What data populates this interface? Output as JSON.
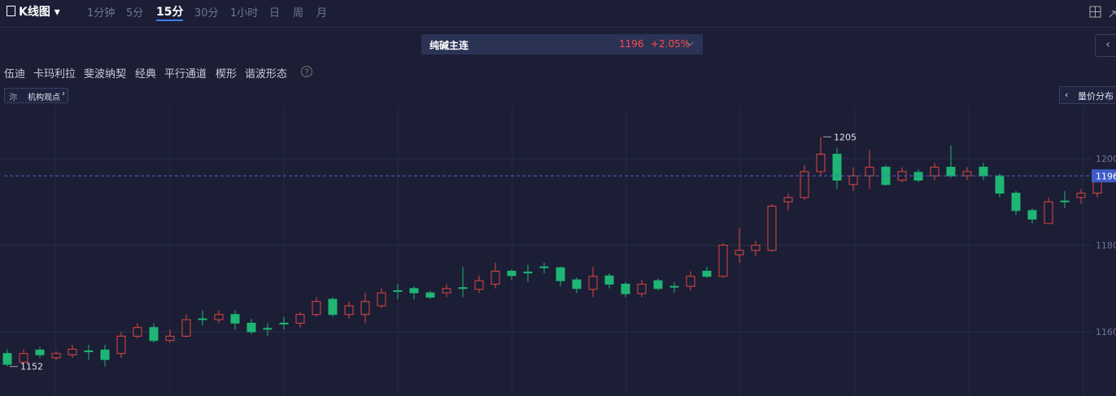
{
  "toolbar": {
    "chart_kind": "K线图",
    "timeframes": [
      "1分钟",
      "5分",
      "15分",
      "30分",
      "1小时",
      "日",
      "周",
      "月"
    ],
    "active": "15分"
  },
  "header": {
    "name": "纯碱主连",
    "price": "1196",
    "change": "+2.05%"
  },
  "tools": [
    "伍迪",
    "卡玛利拉",
    "斐波纳契",
    "经典",
    "平行通道",
    "楔形",
    "谐波形态"
  ],
  "buttons": {
    "views": "机构观点",
    "volume_profile": "量价分布"
  },
  "chart_data": {
    "type": "candlestick",
    "up_color": "#e0473f",
    "down_color": "#1fb574",
    "grid": true,
    "ylim": [
      1145,
      1212
    ],
    "yticks": [
      1160,
      1180,
      1200
    ],
    "high_label": 1205,
    "low_label": 1152,
    "last_price": 1196,
    "series": {
      "open": [
        1155,
        1153,
        1155.8,
        1154,
        1154.7,
        1155.6,
        1155.8,
        1155,
        1159,
        1161,
        1158,
        1159,
        1163,
        1162.8,
        1164,
        1162,
        1160.8,
        1162,
        1162,
        1164,
        1167.5,
        1164,
        1164,
        1166,
        1169.5,
        1170,
        1169,
        1169,
        1170.2,
        1169.8,
        1171,
        1174,
        1173.8,
        1175,
        1174.8,
        1172,
        1169.8,
        1172.9,
        1171,
        1168.8,
        1171.8,
        1170.5,
        1170.5,
        1174,
        1172.8,
        1177.8,
        1178.8,
        1178.8,
        1190,
        1191,
        1197,
        1201,
        1194,
        1196,
        1198,
        1195,
        1196.8,
        1196,
        1198,
        1196,
        1198,
        1196,
        1192,
        1188,
        1185,
        1190.2,
        1191,
        1192
      ],
      "high": [
        1156,
        1156,
        1156.5,
        1155.5,
        1157,
        1157,
        1157,
        1160,
        1162,
        1162,
        1160.5,
        1164,
        1165,
        1165,
        1165,
        1163,
        1162,
        1163.5,
        1164.5,
        1168,
        1168,
        1167,
        1169,
        1170,
        1171,
        1170.5,
        1169.5,
        1171,
        1175,
        1173,
        1176,
        1174.5,
        1175.5,
        1176,
        1175,
        1172.5,
        1175,
        1173.5,
        1171.5,
        1172,
        1172.3,
        1171.5,
        1174,
        1175,
        1180.5,
        1184,
        1181,
        1189.5,
        1192,
        1198.5,
        1205,
        1202.5,
        1198,
        1202,
        1198.5,
        1198,
        1197.5,
        1199,
        1203,
        1198,
        1199,
        1196.5,
        1192.5,
        1188.5,
        1191,
        1192.5,
        1193,
        1197
      ],
      "low": [
        1152,
        1152.5,
        1154,
        1153.5,
        1154,
        1153.5,
        1152,
        1154,
        1158.5,
        1157.5,
        1157.5,
        1158.7,
        1161.5,
        1162,
        1160.5,
        1159.5,
        1159,
        1160.5,
        1161,
        1163.5,
        1163.5,
        1163,
        1162,
        1165.5,
        1167.5,
        1167.5,
        1167.5,
        1168,
        1168,
        1169,
        1170,
        1172,
        1171.5,
        1173.5,
        1170.5,
        1169,
        1168,
        1170,
        1168,
        1168,
        1169.5,
        1169,
        1169.5,
        1172.5,
        1172.5,
        1176,
        1177.5,
        1178.5,
        1188,
        1190.5,
        1196,
        1193,
        1192.5,
        1193,
        1193.8,
        1194.5,
        1194.5,
        1195,
        1195.5,
        1195,
        1195,
        1191,
        1187,
        1185,
        1185,
        1188.5,
        1189.5,
        1191
      ],
      "close": [
        1152.5,
        1155,
        1154.7,
        1155,
        1156,
        1155.4,
        1153.6,
        1159,
        1161,
        1158,
        1159,
        1162.8,
        1162.8,
        1164,
        1162,
        1160,
        1160.6,
        1161.8,
        1164,
        1167,
        1164,
        1166,
        1167,
        1169,
        1169.3,
        1169,
        1168,
        1170,
        1170,
        1171.8,
        1174,
        1173,
        1173.6,
        1174.8,
        1171.8,
        1170,
        1172.8,
        1171,
        1168.8,
        1171,
        1170,
        1170.3,
        1172.8,
        1172.8,
        1180,
        1178.8,
        1180,
        1189,
        1191,
        1197,
        1201,
        1195,
        1196,
        1198,
        1194,
        1197,
        1195,
        1198,
        1196,
        1197,
        1196,
        1192,
        1188,
        1186,
        1190,
        1190,
        1192,
        1196
      ]
    }
  }
}
